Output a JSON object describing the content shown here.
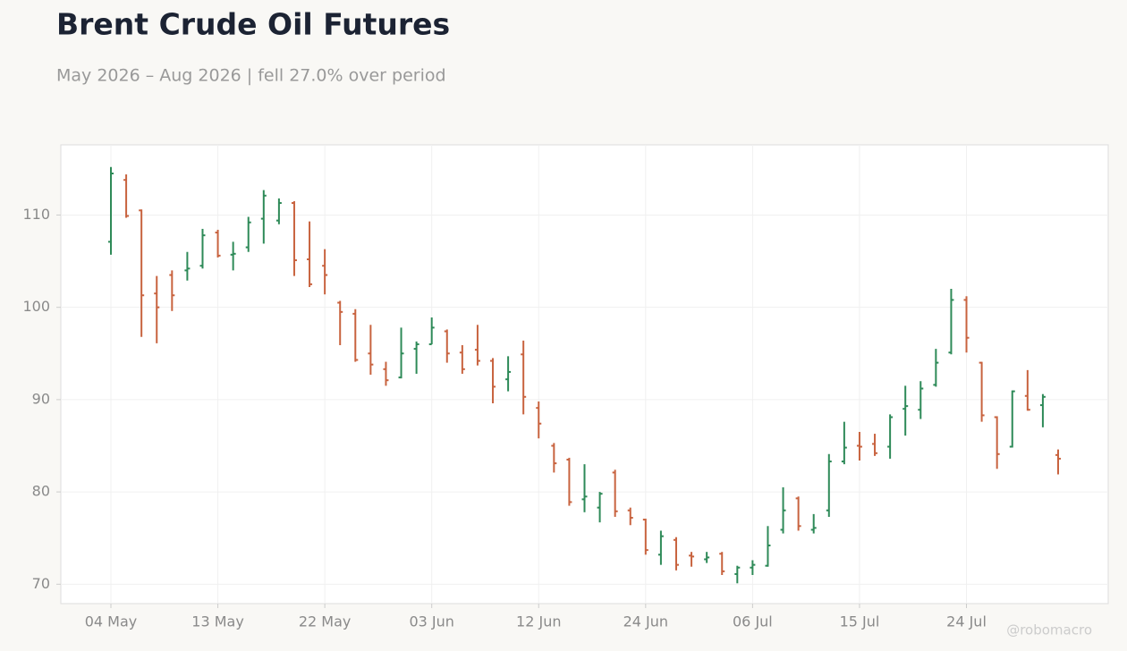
{
  "chart_data": {
    "type": "ohlc",
    "title": "Brent Crude Oil Futures",
    "subtitle": "May 2026 – Aug 2026 | fell 27.0% over period",
    "watermark": "@robomacro",
    "categories": [
      "04 May",
      null,
      null,
      null,
      null,
      null,
      null,
      "13 May",
      null,
      null,
      null,
      null,
      null,
      null,
      "22 May",
      null,
      null,
      null,
      null,
      null,
      null,
      "03 Jun",
      null,
      null,
      null,
      null,
      null,
      null,
      "12 Jun",
      null,
      null,
      null,
      null,
      null,
      null,
      "24 Jun",
      null,
      null,
      null,
      null,
      null,
      null,
      "06 Jul",
      null,
      null,
      null,
      null,
      null,
      null,
      "15 Jul",
      null,
      null,
      null,
      null,
      null,
      null,
      "24 Jul",
      null,
      null,
      null,
      null,
      null,
      null
    ],
    "open": [
      107.1,
      113.8,
      110.5,
      101.5,
      103.5,
      104.0,
      104.5,
      108.1,
      105.7,
      106.5,
      109.6,
      109.4,
      111.3,
      105.2,
      104.5,
      100.5,
      99.3,
      95.0,
      93.3,
      92.4,
      95.5,
      96.0,
      97.4,
      95.1,
      95.4,
      94.2,
      92.2,
      94.9,
      89.1,
      85.0,
      83.5,
      79.2,
      78.3,
      82.1,
      78.0,
      77.0,
      73.2,
      74.8,
      73.1,
      72.7,
      73.3,
      71.1,
      71.8,
      72.0,
      75.9,
      79.3,
      75.9,
      78.0,
      83.3,
      85.0,
      85.2,
      84.9,
      89.0,
      88.9,
      91.6,
      95.1,
      100.8,
      94.0,
      88.1,
      84.9,
      90.4,
      89.4,
      84.0
    ],
    "high": [
      115.2,
      114.4,
      110.6,
      103.4,
      104.0,
      106.0,
      108.5,
      108.4,
      107.1,
      109.8,
      112.7,
      111.8,
      111.5,
      109.3,
      106.3,
      100.7,
      99.8,
      98.1,
      94.1,
      97.8,
      96.3,
      98.9,
      97.6,
      95.9,
      98.1,
      94.5,
      94.7,
      96.4,
      89.8,
      85.3,
      83.7,
      83.0,
      80.0,
      82.4,
      78.3,
      77.1,
      75.8,
      75.1,
      73.5,
      73.5,
      73.5,
      72.0,
      72.6,
      76.3,
      80.5,
      79.5,
      77.6,
      84.1,
      87.6,
      86.5,
      86.3,
      88.4,
      91.5,
      92.0,
      95.5,
      102.0,
      101.2,
      94.1,
      88.2,
      91.0,
      93.2,
      90.6,
      84.6
    ],
    "low": [
      105.7,
      109.7,
      96.8,
      96.1,
      99.6,
      102.9,
      104.2,
      105.4,
      104.0,
      106.0,
      106.9,
      109.0,
      103.4,
      102.2,
      101.4,
      95.9,
      94.1,
      92.7,
      91.5,
      92.3,
      92.8,
      96.0,
      94.0,
      92.8,
      93.7,
      89.6,
      90.9,
      88.4,
      85.8,
      82.1,
      78.5,
      77.8,
      76.7,
      77.3,
      76.4,
      73.2,
      72.1,
      71.5,
      71.9,
      72.3,
      71.0,
      70.1,
      71.0,
      71.9,
      75.5,
      75.8,
      75.5,
      77.3,
      83.0,
      83.4,
      83.9,
      83.6,
      86.1,
      87.9,
      91.4,
      94.9,
      95.1,
      87.6,
      82.5,
      84.8,
      88.8,
      87.0,
      81.9
    ],
    "close": [
      114.5,
      109.9,
      101.3,
      100.0,
      101.3,
      104.2,
      107.8,
      105.6,
      105.8,
      109.2,
      112.1,
      111.3,
      105.1,
      102.5,
      103.5,
      99.5,
      94.3,
      93.8,
      92.1,
      95.0,
      96.0,
      97.8,
      95.0,
      93.3,
      94.2,
      91.4,
      93.0,
      90.3,
      87.4,
      83.1,
      78.9,
      79.5,
      79.8,
      77.9,
      77.2,
      73.7,
      75.2,
      72.1,
      73.0,
      72.9,
      71.4,
      71.8,
      72.1,
      74.2,
      78.0,
      76.3,
      76.1,
      83.3,
      84.8,
      84.9,
      84.2,
      88.1,
      89.3,
      91.2,
      94.0,
      100.8,
      96.7,
      88.3,
      84.1,
      90.9,
      88.9,
      90.3,
      83.6
    ],
    "up_color": "#2e8a58",
    "down_color": "#c8633f",
    "ylim": [
      67.9,
      117.6
    ],
    "yticks": [
      70,
      80,
      90,
      100,
      110
    ],
    "grid": true
  }
}
